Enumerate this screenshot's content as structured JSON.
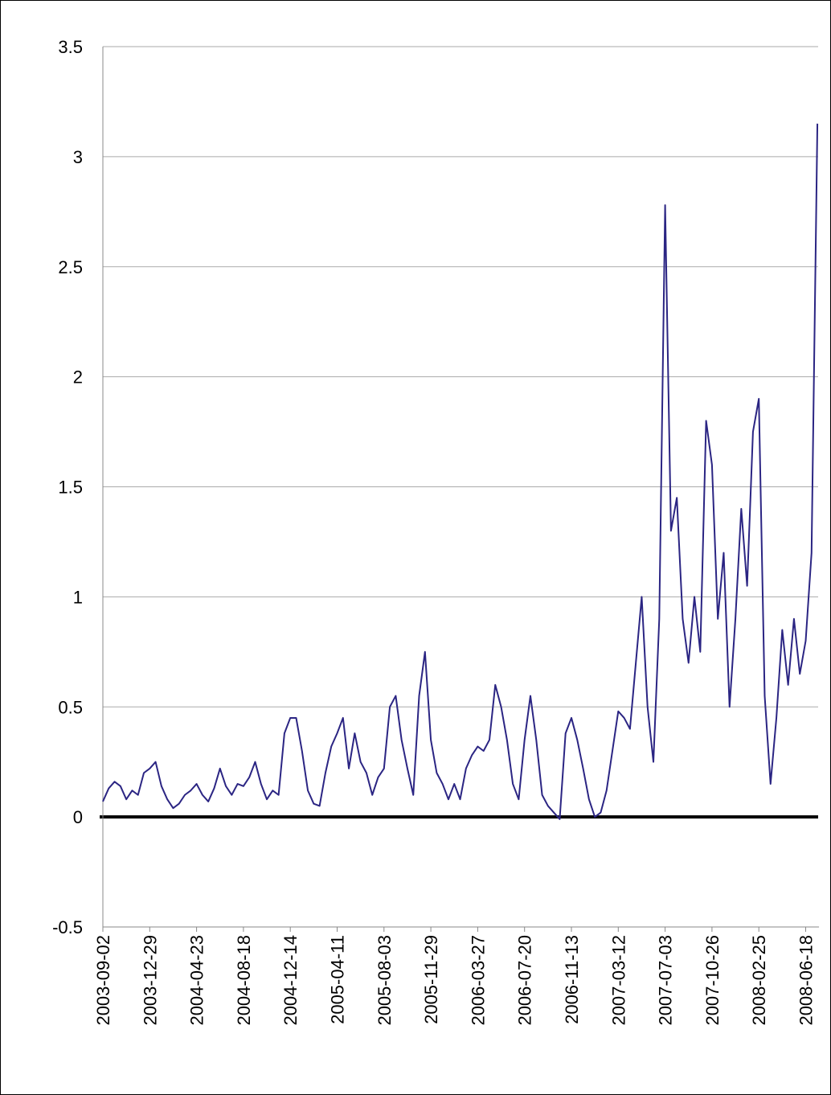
{
  "chart_data": {
    "type": "line",
    "categories": [
      "2003-09-02",
      null,
      null,
      null,
      null,
      null,
      null,
      null,
      "2003-12-29",
      null,
      null,
      null,
      null,
      null,
      null,
      null,
      "2004-04-23",
      null,
      null,
      null,
      null,
      null,
      null,
      null,
      "2004-08-18",
      null,
      null,
      null,
      null,
      null,
      null,
      null,
      "2004-12-14",
      null,
      null,
      null,
      null,
      null,
      null,
      null,
      "2005-04-11",
      null,
      null,
      null,
      null,
      null,
      null,
      null,
      "2005-08-03",
      null,
      null,
      null,
      null,
      null,
      null,
      null,
      "2005-11-29",
      null,
      null,
      null,
      null,
      null,
      null,
      null,
      "2006-03-27",
      null,
      null,
      null,
      null,
      null,
      null,
      null,
      "2006-07-20",
      null,
      null,
      null,
      null,
      null,
      null,
      null,
      "2006-11-13",
      null,
      null,
      null,
      null,
      null,
      null,
      null,
      "2007-03-12",
      null,
      null,
      null,
      null,
      null,
      null,
      null,
      "2007-07-03",
      null,
      null,
      null,
      null,
      null,
      null,
      null,
      "2007-10-26",
      null,
      null,
      null,
      null,
      null,
      null,
      null,
      "2008-02-25",
      null,
      null,
      null,
      null,
      null,
      null,
      null,
      "2008-06-18",
      null,
      null
    ],
    "values": [
      0.07,
      0.13,
      0.16,
      0.14,
      0.08,
      0.12,
      0.1,
      0.2,
      0.22,
      0.25,
      0.14,
      0.08,
      0.04,
      0.06,
      0.1,
      0.12,
      0.15,
      0.1,
      0.07,
      0.13,
      0.22,
      0.14,
      0.1,
      0.15,
      0.14,
      0.18,
      0.25,
      0.15,
      0.08,
      0.12,
      0.1,
      0.38,
      0.45,
      0.45,
      0.3,
      0.12,
      0.06,
      0.05,
      0.2,
      0.32,
      0.38,
      0.45,
      0.22,
      0.38,
      0.25,
      0.2,
      0.1,
      0.18,
      0.22,
      0.5,
      0.55,
      0.35,
      0.22,
      0.1,
      0.55,
      0.75,
      0.35,
      0.2,
      0.15,
      0.08,
      0.15,
      0.08,
      0.22,
      0.28,
      0.32,
      0.3,
      0.35,
      0.6,
      0.5,
      0.35,
      0.15,
      0.08,
      0.35,
      0.55,
      0.35,
      0.1,
      0.05,
      0.02,
      -0.01,
      0.38,
      0.45,
      0.35,
      0.22,
      0.08,
      0.0,
      0.02,
      0.12,
      0.3,
      0.48,
      0.45,
      0.4,
      0.7,
      1.0,
      0.5,
      0.25,
      0.9,
      2.78,
      1.3,
      1.45,
      0.9,
      0.7,
      1.0,
      0.75,
      1.8,
      1.6,
      0.9,
      1.2,
      0.5,
      0.9,
      1.4,
      1.05,
      1.75,
      1.9,
      0.55,
      0.15,
      0.45,
      0.85,
      0.6,
      0.9,
      0.65,
      0.8,
      1.2,
      3.15
    ],
    "color": "#2b2583",
    "ylim": [
      -0.5,
      3.5
    ],
    "yticks": [
      -0.5,
      0,
      0.5,
      1,
      1.5,
      2,
      2.5,
      3,
      3.5
    ],
    "grid": true
  }
}
